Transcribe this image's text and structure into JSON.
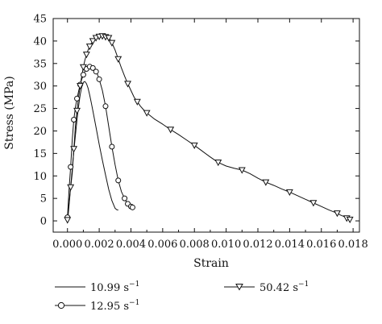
{
  "chart_data": {
    "type": "line",
    "xlabel": "Strain",
    "ylabel": "Stress (MPa)",
    "xlim": [
      -0.0009,
      0.0184
    ],
    "ylim": [
      -2.5,
      45
    ],
    "x_ticks": [
      "0.000",
      "0.002",
      "0.004",
      "0.006",
      "0.008",
      "0.010",
      "0.012",
      "0.014",
      "0.016",
      "0.018"
    ],
    "y_ticks": [
      "0",
      "5",
      "10",
      "15",
      "20",
      "25",
      "30",
      "35",
      "40",
      "45"
    ],
    "series": [
      {
        "name": "10.99 s",
        "rate_exponent": "−1",
        "marker": "none",
        "x": [
          0.0,
          5e-05,
          0.0001,
          0.0002,
          0.0003,
          0.0004,
          0.0005,
          0.0006,
          0.0007,
          0.0008,
          0.0009,
          0.001,
          0.0011,
          0.0012,
          0.0013,
          0.0014,
          0.0015,
          0.0016,
          0.0018,
          0.002,
          0.0022,
          0.0024,
          0.0026,
          0.0028,
          0.003,
          0.0031,
          0.0032
        ],
        "y": [
          0.2,
          1.5,
          3.5,
          7.5,
          11.5,
          15.5,
          19.0,
          22.5,
          25.5,
          28.0,
          29.8,
          30.8,
          31.0,
          30.5,
          29.5,
          28.0,
          26.3,
          24.5,
          20.8,
          17.0,
          13.5,
          10.2,
          7.0,
          4.5,
          2.8,
          2.5,
          2.4
        ]
      },
      {
        "name": "12.95 s",
        "rate_exponent": "−1",
        "marker": "circle",
        "x": [
          0.0,
          0.0001,
          0.0002,
          0.0003,
          0.0004,
          0.0005,
          0.0006,
          0.0007,
          0.0008,
          0.0009,
          0.001,
          0.0011,
          0.0012,
          0.0013,
          0.0014,
          0.0015,
          0.0016,
          0.0017,
          0.0018,
          0.0019,
          0.002,
          0.0022,
          0.0024,
          0.0026,
          0.0028,
          0.003,
          0.0032,
          0.0034,
          0.0036,
          0.0037,
          0.0038,
          0.0039,
          0.004,
          0.0041
        ],
        "y": [
          0.8,
          7.0,
          12.0,
          18.0,
          22.5,
          25.3,
          27.2,
          28.8,
          30.3,
          31.5,
          32.5,
          33.3,
          33.8,
          34.1,
          34.3,
          34.2,
          34.0,
          33.6,
          33.2,
          32.5,
          31.5,
          29.0,
          25.5,
          21.0,
          16.5,
          12.5,
          9.0,
          6.5,
          5.0,
          4.3,
          3.8,
          3.5,
          3.2,
          3.0
        ]
      },
      {
        "name": "50.42 s",
        "rate_exponent": "−1",
        "marker": "triangle-down",
        "x": [
          0.0,
          0.0001,
          0.0002,
          0.0003,
          0.0004,
          0.0005,
          0.0006,
          0.0007,
          0.0008,
          0.0009,
          0.001,
          0.0011,
          0.0012,
          0.0013,
          0.0014,
          0.0015,
          0.0016,
          0.0017,
          0.0018,
          0.0019,
          0.002,
          0.0021,
          0.0022,
          0.0023,
          0.0024,
          0.0025,
          0.0026,
          0.0027,
          0.0028,
          0.003,
          0.0032,
          0.0034,
          0.0036,
          0.0038,
          0.004,
          0.0042,
          0.0044,
          0.0046,
          0.0048,
          0.005,
          0.0055,
          0.006,
          0.0065,
          0.007,
          0.0075,
          0.008,
          0.0085,
          0.009,
          0.0095,
          0.01,
          0.0105,
          0.011,
          0.0115,
          0.012,
          0.0125,
          0.013,
          0.0135,
          0.014,
          0.0145,
          0.015,
          0.0155,
          0.016,
          0.0165,
          0.017,
          0.0172,
          0.0174,
          0.0176,
          0.0178
        ],
        "y": [
          0.2,
          4.0,
          7.5,
          10.5,
          16.0,
          21.0,
          24.5,
          27.5,
          30.0,
          32.2,
          34.2,
          35.8,
          37.0,
          38.0,
          38.8,
          39.5,
          40.0,
          40.4,
          40.7,
          40.9,
          41.0,
          41.1,
          41.1,
          41.0,
          40.9,
          40.8,
          40.7,
          40.3,
          39.6,
          38.0,
          36.0,
          34.0,
          32.2,
          30.5,
          29.0,
          27.5,
          26.5,
          25.5,
          24.7,
          24.0,
          22.6,
          21.5,
          20.3,
          19.2,
          18.0,
          16.8,
          15.5,
          14.2,
          13.0,
          12.2,
          11.7,
          11.3,
          10.5,
          9.5,
          8.6,
          7.9,
          7.1,
          6.4,
          5.6,
          4.8,
          4.0,
          3.2,
          2.4,
          1.7,
          1.3,
          1.0,
          0.6,
          0.3
        ]
      }
    ],
    "legend": {
      "placement": "bottom",
      "unit": "s",
      "exponent": "−1"
    }
  }
}
